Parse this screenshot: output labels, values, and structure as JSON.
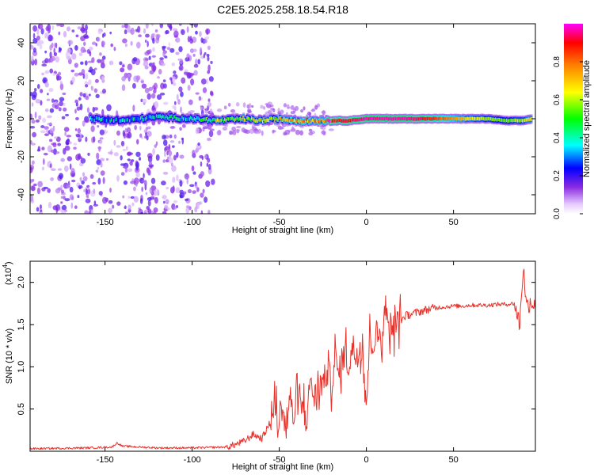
{
  "figure_title": "C2E5.2025.258.18.54.R18",
  "chart_data": [
    {
      "type": "heatmap",
      "title": "C2E5.2025.258.18.54.R18",
      "xlabel": "Height of straight line (km)",
      "ylabel": "Frequency (Hz)",
      "xlim": [
        -193,
        97
      ],
      "ylim": [
        -50,
        50
      ],
      "xticks": [
        -150,
        -100,
        -50,
        0,
        50
      ],
      "xtick_labels": [
        "-150",
        "-100",
        "-50",
        "0",
        "50"
      ],
      "yticks": [
        -40,
        -20,
        0,
        20,
        40
      ],
      "ytick_labels": [
        "-40",
        "-20",
        "0",
        "20",
        "40"
      ],
      "colorbar": {
        "label": "Normalized spectral amplitude",
        "range": [
          0,
          1
        ],
        "ticks": [
          0.0,
          0.2,
          0.4,
          0.6,
          0.8
        ],
        "tick_labels": [
          "0.0",
          "0.2",
          "0.4",
          "0.6",
          "0.8"
        ],
        "colormap": [
          "#ffffff",
          "#cc99ff",
          "#7f00ff",
          "#0000ff",
          "#00ffff",
          "#00ff00",
          "#ffff00",
          "#ff8000",
          "#ff0000",
          "#ff00ff"
        ]
      },
      "ridge": {
        "x": [
          -158,
          -140,
          -120,
          -100,
          -85,
          -70,
          -60,
          -50,
          -40,
          -30,
          -20,
          -10,
          0,
          10,
          20,
          30,
          40,
          50,
          60,
          70,
          80,
          90,
          95
        ],
        "freq": [
          0,
          -1,
          1,
          0,
          -1,
          0,
          -1,
          0,
          -1,
          -1,
          -1,
          -1,
          0,
          0,
          0,
          0,
          0,
          0,
          0,
          0,
          -1,
          -1,
          0
        ],
        "amplitude": [
          0.3,
          0.35,
          0.38,
          0.4,
          0.55,
          0.6,
          0.62,
          0.65,
          0.7,
          0.75,
          0.88,
          0.92,
          0.95,
          0.97,
          0.97,
          0.95,
          0.85,
          0.75,
          0.65,
          0.58,
          0.55,
          0.6,
          0.7
        ]
      },
      "scatter_noise_region": [
        -193,
        -88
      ]
    },
    {
      "type": "line",
      "xlabel": "Height of straight line (km)",
      "ylabel": "SNR (10 * v/v)",
      "multiplier_label": "(x10",
      "multiplier_exponent": "4",
      "multiplier_close": ")",
      "xlim": [
        -193,
        97
      ],
      "ylim": [
        0,
        2.25
      ],
      "xticks": [
        -150,
        -100,
        -50,
        0,
        50
      ],
      "xtick_labels": [
        "-150",
        "-100",
        "-50",
        "0",
        "50"
      ],
      "yticks": [
        0.5,
        1.0,
        1.5,
        2.0
      ],
      "ytick_labels": [
        "0.5",
        "1.0",
        "1.5",
        "2.0"
      ],
      "series": [
        {
          "name": "SNR",
          "color": "#e8312a",
          "x": [
            -193,
            -160,
            -146,
            -143,
            -140,
            -120,
            -100,
            -80,
            -75,
            -70,
            -65,
            -60,
            -55,
            -52,
            -50,
            -48,
            -46,
            -44,
            -42,
            -40,
            -38,
            -36,
            -34,
            -32,
            -30,
            -28,
            -26,
            -24,
            -22,
            -20,
            -18,
            -16,
            -14,
            -12,
            -10,
            -8,
            -6,
            -4,
            -2,
            0,
            2,
            4,
            6,
            8,
            10,
            11,
            12,
            14,
            16,
            18,
            20,
            22,
            25,
            30,
            35,
            40,
            45,
            50,
            55,
            60,
            65,
            70,
            75,
            80,
            85,
            88,
            90,
            92,
            94,
            97
          ],
          "y": [
            0.03,
            0.04,
            0.05,
            0.1,
            0.06,
            0.04,
            0.04,
            0.05,
            0.08,
            0.12,
            0.2,
            0.15,
            0.35,
            0.55,
            0.3,
            0.6,
            0.2,
            0.7,
            0.35,
            0.65,
            0.5,
            0.55,
            0.4,
            0.9,
            0.6,
            0.75,
            0.8,
            0.85,
            0.95,
            0.8,
            1.1,
            0.9,
            1.05,
            1.2,
            1.0,
            1.25,
            1.15,
            1.2,
            1.25,
            0.55,
            1.35,
            1.3,
            1.4,
            1.35,
            1.45,
            1.9,
            1.45,
            1.5,
            1.45,
            1.55,
            1.55,
            1.6,
            1.62,
            1.65,
            1.68,
            1.7,
            1.71,
            1.72,
            1.72,
            1.73,
            1.73,
            1.73,
            1.74,
            1.74,
            1.75,
            1.5,
            2.2,
            1.7,
            1.78,
            1.73
          ]
        }
      ]
    }
  ]
}
